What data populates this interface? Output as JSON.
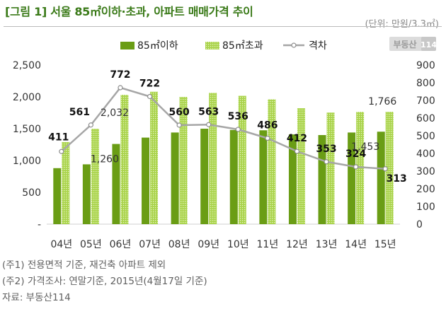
{
  "title": "[그림 1] 서울 85㎡이하·초과, 아파트 매매가격 추이",
  "unit": "(단위: 만원/3.3㎡)",
  "logo_text": "부동산114",
  "notes": [
    "(주1) 전용면적 기준, 재건축 아파트 제외",
    "(주2) 가격조사: 연말기준, 2015년(4월17일 기준)",
    "자료: 부동산114"
  ],
  "colors": {
    "small": "#6a9d15",
    "large": "#9ccb3a",
    "gap": "#a6a6a6",
    "title": "#3a7a18"
  },
  "chart_data": {
    "type": "bar",
    "categories": [
      "04년",
      "05년",
      "06년",
      "07년",
      "08년",
      "09년",
      "10년",
      "11년",
      "12년",
      "13년",
      "14년",
      "15년"
    ],
    "legend_position": "top",
    "ylim": [
      0,
      2500
    ],
    "yticks": [
      "-",
      "500",
      "1,000",
      "1,500",
      "2,000",
      "2,500"
    ],
    "y2lim": [
      0,
      900
    ],
    "y2ticks": [
      "0",
      "100",
      "200",
      "300",
      "400",
      "500",
      "600",
      "700",
      "800",
      "900"
    ],
    "series": [
      {
        "name": "85㎡이하",
        "type": "bar",
        "values": [
          880,
          940,
          1260,
          1360,
          1440,
          1500,
          1480,
          1475,
          1410,
          1400,
          1440,
          1453
        ],
        "labels": [
          "",
          "",
          "1,260",
          "",
          "",
          "",
          "",
          "",
          "",
          "",
          "",
          "1,453"
        ]
      },
      {
        "name": "85㎡초과",
        "type": "bar",
        "values": [
          1290,
          1500,
          2032,
          2080,
          2000,
          2063,
          2016,
          1961,
          1822,
          1753,
          1764,
          1766
        ],
        "labels": [
          "",
          "",
          "2,032",
          "",
          "",
          "",
          "",
          "",
          "",
          "",
          "",
          "1,766"
        ]
      },
      {
        "name": "격차",
        "type": "line",
        "axis": "secondary",
        "values": [
          411,
          561,
          772,
          722,
          560,
          563,
          536,
          486,
          412,
          353,
          324,
          313
        ],
        "labels": [
          "411",
          "561",
          "772",
          "722",
          "560",
          "563",
          "536",
          "486",
          "412",
          "353",
          "324",
          "313"
        ]
      }
    ]
  }
}
